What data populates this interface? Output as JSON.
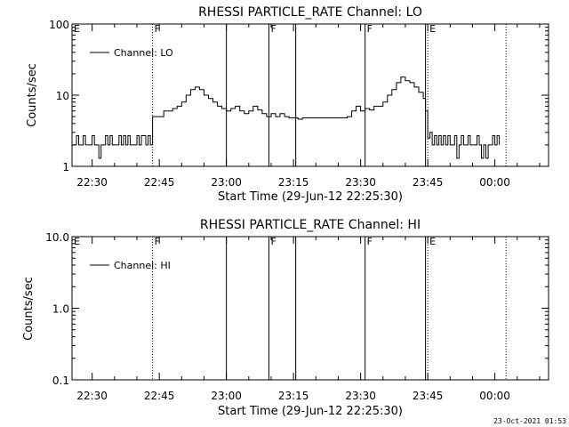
{
  "stamp": "23-Oct-2021 01:53",
  "chart_data": [
    {
      "type": "line",
      "title": "RHESSI PARTICLE_RATE Channel: LO",
      "xlabel": "Start Time (29-Jun-12 22:25:30)",
      "ylabel": "Counts/sec",
      "y_scale": "log",
      "ylim": [
        1,
        100
      ],
      "y_ticks": [
        "1",
        "10",
        "100"
      ],
      "xlim": [
        "22:25:30",
        "00:12"
      ],
      "x_ticks": [
        "22:30",
        "22:45",
        "23:00",
        "23:15",
        "23:30",
        "23:45",
        "00:00"
      ],
      "grid": false,
      "legend": {
        "position": "top-left",
        "entries": [
          "Channel: LO"
        ]
      },
      "markers": [
        {
          "time": "22:25:30",
          "label": "E",
          "style": "none"
        },
        {
          "time": "22:43:30",
          "label": "F",
          "style": "dotted"
        },
        {
          "time": "23:00:00",
          "label": "",
          "style": "solid"
        },
        {
          "time": "23:09:30",
          "label": "F",
          "style": "solid"
        },
        {
          "time": "23:15:30",
          "label": "",
          "style": "solid"
        },
        {
          "time": "23:31:00",
          "label": "F",
          "style": "solid"
        },
        {
          "time": "23:44:30",
          "label": "",
          "style": "solid"
        },
        {
          "time": "23:45:00",
          "label": "E",
          "style": "dotted"
        },
        {
          "time": "00:02:30",
          "label": "",
          "style": "dotted"
        }
      ],
      "series": [
        {
          "name": "Channel: LO",
          "x": [
            "22:25:30",
            "22:26:00",
            "22:26:30",
            "22:27:00",
            "22:27:30",
            "22:28:00",
            "22:28:30",
            "22:29:00",
            "22:29:30",
            "22:30:00",
            "22:30:30",
            "22:31:00",
            "22:31:30",
            "22:32:00",
            "22:32:30",
            "22:33:00",
            "22:33:30",
            "22:34:00",
            "22:34:30",
            "22:35:00",
            "22:35:30",
            "22:36:00",
            "22:36:30",
            "22:37:00",
            "22:37:30",
            "22:38:00",
            "22:38:30",
            "22:39:00",
            "22:39:30",
            "22:40:00",
            "22:40:30",
            "22:41:00",
            "22:41:30",
            "22:42:00",
            "22:42:30",
            "22:43:00",
            "22:43:30",
            "22:44:00",
            "22:45:00",
            "22:46:00",
            "22:47:00",
            "22:48:00",
            "22:49:00",
            "22:50:00",
            "22:51:00",
            "22:52:00",
            "22:53:00",
            "22:54:00",
            "22:55:00",
            "22:56:00",
            "22:57:00",
            "22:58:00",
            "22:59:00",
            "23:00:00",
            "23:01:00",
            "23:02:00",
            "23:03:00",
            "23:04:00",
            "23:05:00",
            "23:06:00",
            "23:07:00",
            "23:08:00",
            "23:09:00",
            "23:10:00",
            "23:11:00",
            "23:12:00",
            "23:13:00",
            "23:14:00",
            "23:15:00",
            "23:16:00",
            "23:17:00",
            "23:18:00",
            "23:19:00",
            "23:20:00",
            "23:21:00",
            "23:22:00",
            "23:23:00",
            "23:24:00",
            "23:25:00",
            "23:26:00",
            "23:27:00",
            "23:28:00",
            "23:29:00",
            "23:30:00",
            "23:31:00",
            "23:32:00",
            "23:33:00",
            "23:34:00",
            "23:35:00",
            "23:36:00",
            "23:37:00",
            "23:38:00",
            "23:39:00",
            "23:40:00",
            "23:41:00",
            "23:42:00",
            "23:43:00",
            "23:44:00",
            "23:44:30",
            "23:45:00",
            "23:45:30",
            "23:46:00",
            "23:46:30",
            "23:47:00",
            "23:47:30",
            "23:48:00",
            "23:48:30",
            "23:49:00",
            "23:49:30",
            "23:50:00",
            "23:50:30",
            "23:51:00",
            "23:51:30",
            "23:52:00",
            "23:52:30",
            "23:53:00",
            "23:53:30",
            "23:54:00",
            "23:54:30",
            "23:55:00",
            "23:55:30",
            "23:56:00",
            "23:56:30",
            "23:57:00",
            "23:57:30",
            "23:58:00",
            "23:58:30",
            "23:59:00",
            "23:59:30",
            "00:00:00",
            "00:00:30",
            "00:01:00"
          ],
          "y": [
            2,
            2,
            2.7,
            2,
            2,
            2.7,
            2,
            2,
            2,
            2.7,
            2,
            2,
            1.3,
            2,
            2,
            2.7,
            2,
            2.7,
            2,
            2,
            2,
            2.7,
            2,
            2.7,
            2,
            2.7,
            2,
            2,
            2,
            2.7,
            2,
            2.7,
            2.7,
            2,
            2.7,
            2,
            5,
            5,
            5,
            6,
            6,
            6.5,
            7,
            8,
            10,
            12,
            13,
            12,
            10,
            9,
            8,
            7,
            6.5,
            6,
            6.5,
            7,
            6,
            5.5,
            6,
            7,
            6.2,
            5.5,
            5,
            5.5,
            5,
            5.5,
            5,
            4.8,
            4.8,
            4.6,
            4.8,
            4.8,
            4.8,
            4.8,
            4.8,
            4.8,
            4.8,
            4.8,
            4.8,
            4.8,
            5,
            6,
            7,
            6,
            6.5,
            6.2,
            7,
            7,
            8,
            10,
            12,
            15,
            18,
            16,
            15,
            13,
            11,
            9,
            6,
            2.5,
            3,
            2,
            2.7,
            2,
            2.7,
            2,
            2.7,
            2,
            2.7,
            2,
            2,
            2.7,
            1.3,
            2,
            2.7,
            2,
            2,
            2.7,
            2,
            2,
            2,
            2.7,
            2,
            1.3,
            2,
            1.3,
            2,
            2,
            2.7,
            2,
            2.7,
            2
          ]
        }
      ]
    },
    {
      "type": "line",
      "title": "RHESSI PARTICLE_RATE Channel: HI",
      "xlabel": "Start Time (29-Jun-12 22:25:30)",
      "ylabel": "Counts/sec",
      "y_scale": "log",
      "ylim": [
        0.1,
        10
      ],
      "y_ticks": [
        "0.1",
        "1.0",
        "10.0"
      ],
      "xlim": [
        "22:25:30",
        "00:12"
      ],
      "x_ticks": [
        "22:30",
        "22:45",
        "23:00",
        "23:15",
        "23:30",
        "23:45",
        "00:00"
      ],
      "grid": false,
      "legend": {
        "position": "top-left",
        "entries": [
          "Channel: HI"
        ]
      },
      "markers": [
        {
          "time": "22:25:30",
          "label": "E",
          "style": "none"
        },
        {
          "time": "22:43:30",
          "label": "F",
          "style": "dotted"
        },
        {
          "time": "23:00:00",
          "label": "",
          "style": "solid"
        },
        {
          "time": "23:09:30",
          "label": "F",
          "style": "solid"
        },
        {
          "time": "23:15:30",
          "label": "",
          "style": "solid"
        },
        {
          "time": "23:31:00",
          "label": "F",
          "style": "solid"
        },
        {
          "time": "23:44:30",
          "label": "",
          "style": "solid"
        },
        {
          "time": "23:45:00",
          "label": "E",
          "style": "dotted"
        },
        {
          "time": "00:02:30",
          "label": "",
          "style": "dotted"
        }
      ],
      "series": [
        {
          "name": "Channel: HI",
          "x": [],
          "y": []
        }
      ]
    }
  ]
}
